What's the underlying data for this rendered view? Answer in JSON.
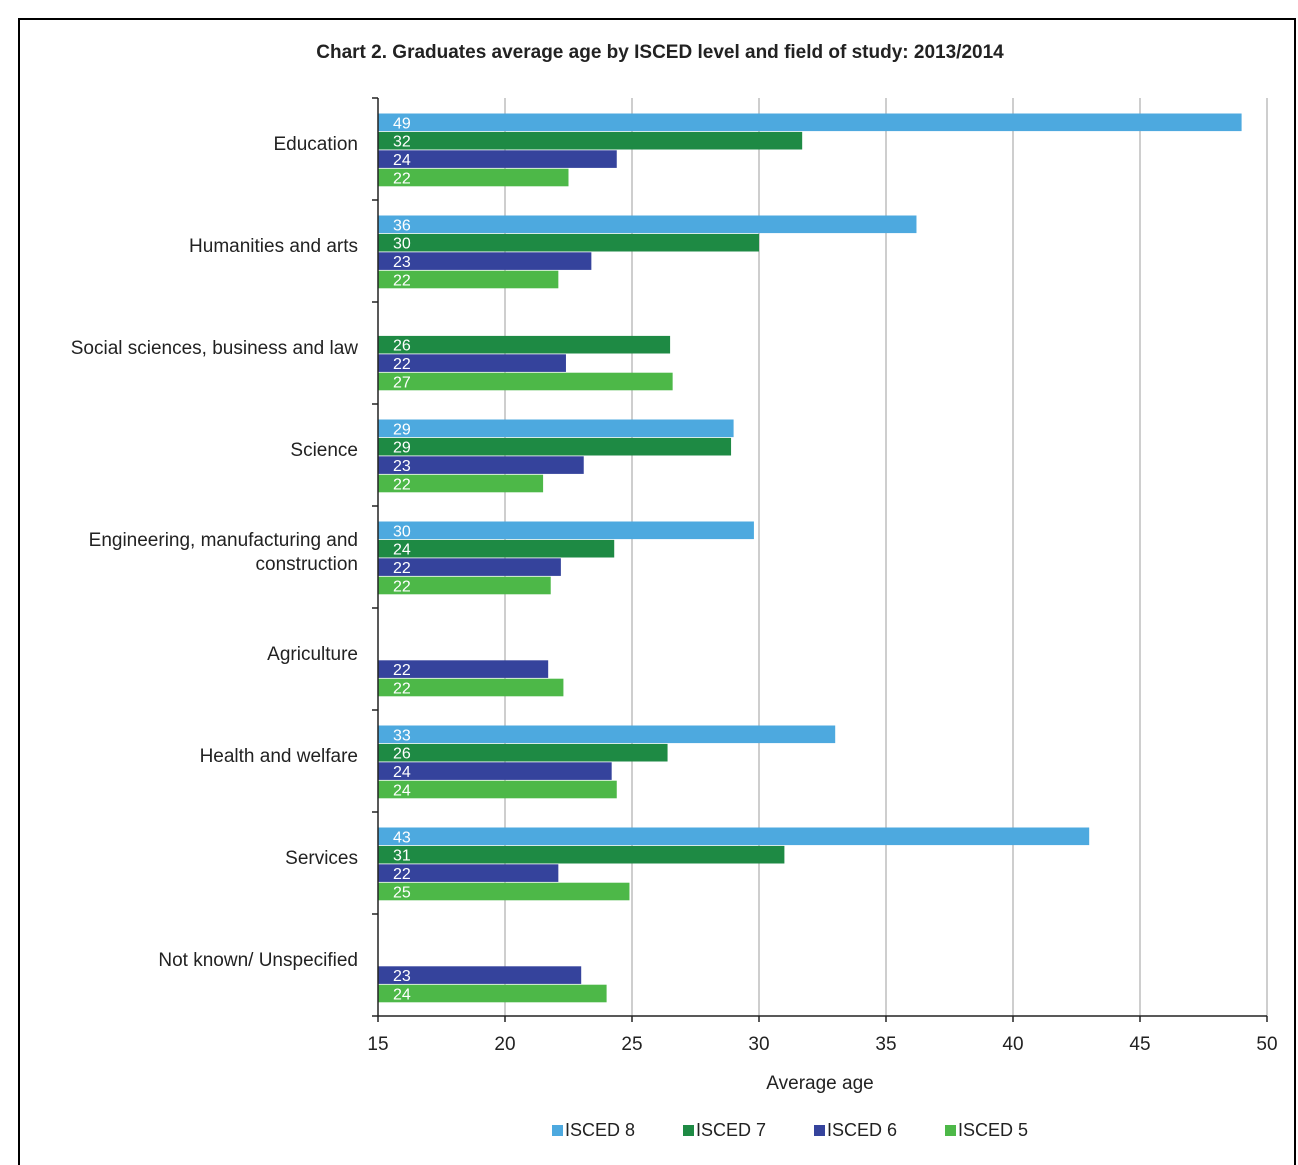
{
  "chart_data": {
    "type": "bar",
    "orientation": "horizontal",
    "title": "Chart 2.  Graduates average age by ISCED level and field of study: 2013/2014",
    "xlabel": "Average age",
    "ylabel": "",
    "xlim": [
      15,
      50
    ],
    "xticks": [
      15,
      20,
      25,
      30,
      35,
      40,
      45,
      50
    ],
    "grid": "vertical",
    "legend_position": "bottom",
    "categories": [
      "Education",
      "Humanities and arts",
      "Social sciences, business and law",
      "Science",
      "Engineering, manufacturing and construction",
      "Agriculture",
      "Health and welfare",
      "Services",
      "Not known/ Unspecified"
    ],
    "category_lines": [
      [
        "Education"
      ],
      [
        "Humanities and arts"
      ],
      [
        "Social sciences, business and law"
      ],
      [
        "Science"
      ],
      [
        "Engineering, manufacturing and",
        "construction"
      ],
      [
        "Agriculture"
      ],
      [
        "Health and welfare"
      ],
      [
        "Services"
      ],
      [
        "Not known/ Unspecified"
      ]
    ],
    "series": [
      {
        "name": "ISCED 8",
        "color": "#4da9df",
        "values": [
          49,
          36.2,
          null,
          29,
          29.8,
          null,
          33,
          43,
          null
        ],
        "labels": [
          "49",
          "36",
          "",
          "29",
          "30",
          "",
          "33",
          "43",
          ""
        ]
      },
      {
        "name": "ISCED 7",
        "color": "#1e8a44",
        "values": [
          31.7,
          30,
          26.5,
          28.9,
          24.3,
          null,
          26.4,
          31,
          null
        ],
        "labels": [
          "32",
          "30",
          "26",
          "29",
          "24",
          "",
          "26",
          "31",
          ""
        ]
      },
      {
        "name": "ISCED 6",
        "color": "#35439c",
        "values": [
          24.4,
          23.4,
          22.4,
          23.1,
          22.2,
          21.7,
          24.2,
          22.1,
          23
        ],
        "labels": [
          "24",
          "23",
          "22",
          "23",
          "22",
          "22",
          "24",
          "22",
          "23"
        ]
      },
      {
        "name": "ISCED 5",
        "color": "#4db848",
        "values": [
          22.5,
          22.1,
          26.6,
          21.5,
          21.8,
          22.3,
          24.4,
          24.9,
          24
        ],
        "labels": [
          "22",
          "22",
          "27",
          "22",
          "22",
          "22",
          "24",
          "25",
          "24"
        ]
      }
    ]
  }
}
